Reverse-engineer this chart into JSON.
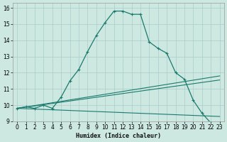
{
  "xlabel": "Humidex (Indice chaleur)",
  "background_color": "#cce8e0",
  "grid_color": "#aacccc",
  "line_color": "#1a7a6e",
  "xlim": [
    -0.5,
    23.5
  ],
  "ylim": [
    9,
    16.3
  ],
  "x_ticks": [
    0,
    1,
    2,
    3,
    4,
    5,
    6,
    7,
    8,
    9,
    10,
    11,
    12,
    13,
    14,
    15,
    16,
    17,
    18,
    19,
    20,
    21,
    22,
    23
  ],
  "y_ticks": [
    9,
    10,
    11,
    12,
    13,
    14,
    15,
    16
  ],
  "line1_x": [
    0,
    1,
    2,
    3,
    4,
    5,
    6,
    7,
    8,
    9,
    10,
    11,
    12,
    13,
    14,
    15,
    16,
    17,
    18,
    19,
    20,
    21,
    22,
    23
  ],
  "line1_y": [
    9.8,
    9.9,
    9.8,
    10.0,
    9.8,
    10.5,
    11.5,
    12.2,
    13.3,
    14.3,
    15.1,
    15.8,
    15.8,
    15.6,
    15.6,
    13.9,
    13.5,
    13.2,
    12.0,
    11.6,
    10.3,
    9.5,
    8.9,
    8.9
  ],
  "line2_x": [
    0,
    23
  ],
  "line2_y": [
    9.8,
    11.55
  ],
  "line3_x": [
    0,
    23
  ],
  "line3_y": [
    9.8,
    11.8
  ],
  "line4_x": [
    0,
    23
  ],
  "line4_y": [
    9.8,
    9.3
  ]
}
